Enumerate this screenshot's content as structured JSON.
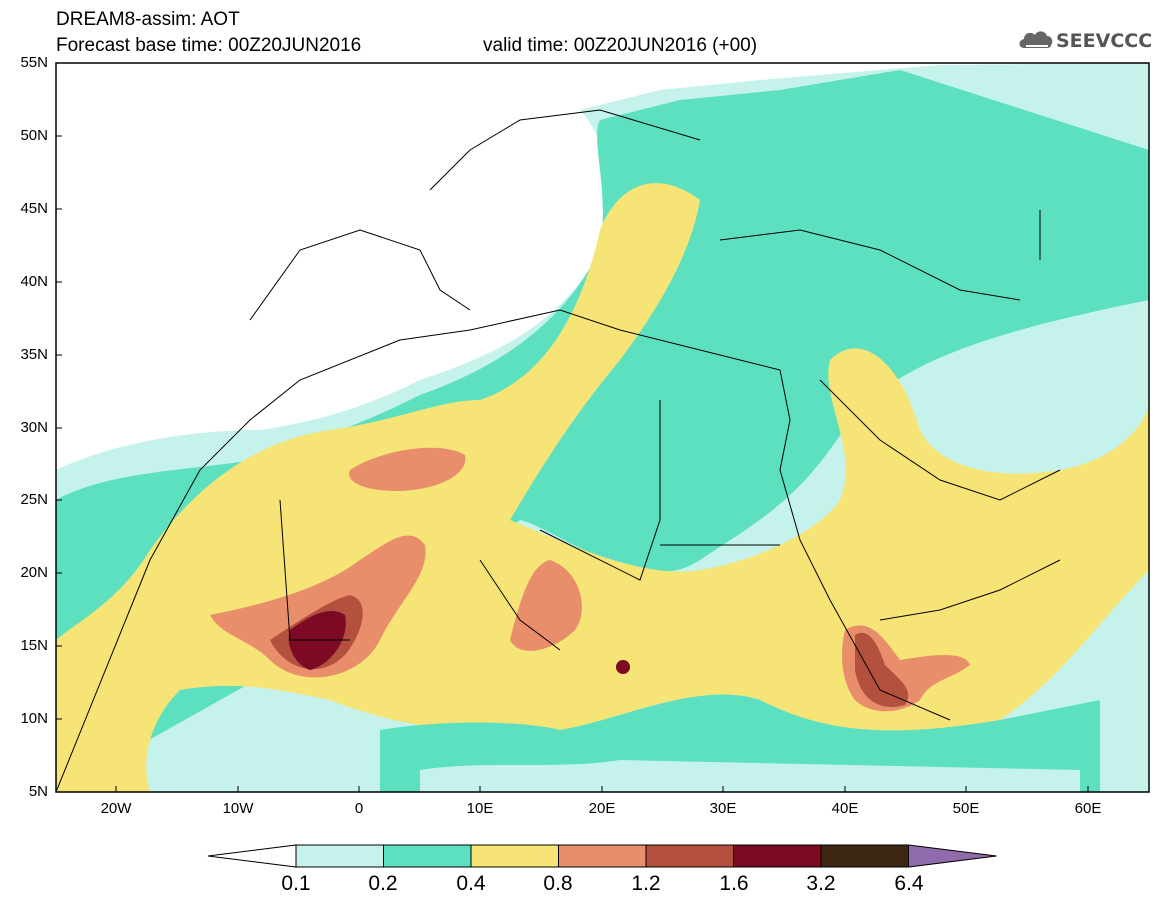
{
  "header": {
    "line1": "DREAM8-assim: AOT",
    "line2": "Forecast base time: 00Z20JUN2016",
    "valid": "valid time: 00Z20JUN2016 (+00)",
    "logo_text": "SEEVCCC",
    "logo_icon": "cloud-icon"
  },
  "axes": {
    "lat_labels": [
      "55N",
      "50N",
      "45N",
      "40N",
      "35N",
      "30N",
      "25N",
      "20N",
      "15N",
      "10N",
      "5N"
    ],
    "lon_labels": [
      "20W",
      "10W",
      "0",
      "10E",
      "20E",
      "30E",
      "40E",
      "50E",
      "60E"
    ]
  },
  "colorbar": {
    "labels": [
      "0.1",
      "0.2",
      "0.4",
      "0.8",
      "1.2",
      "1.6",
      "3.2",
      "6.4"
    ],
    "colors": [
      "#ffffff",
      "#c6f2ec",
      "#5ce0bf",
      "#f7e477",
      "#e88e6b",
      "#b3503e",
      "#7d0a25",
      "#3d2612",
      "#8f6bab"
    ]
  },
  "colors": {
    "c1": "#c6f2ec",
    "c2": "#5ce0bf",
    "c3": "#f7e477",
    "c4": "#e88e6b",
    "c5": "#b3503e",
    "c6": "#7d0a25"
  }
}
